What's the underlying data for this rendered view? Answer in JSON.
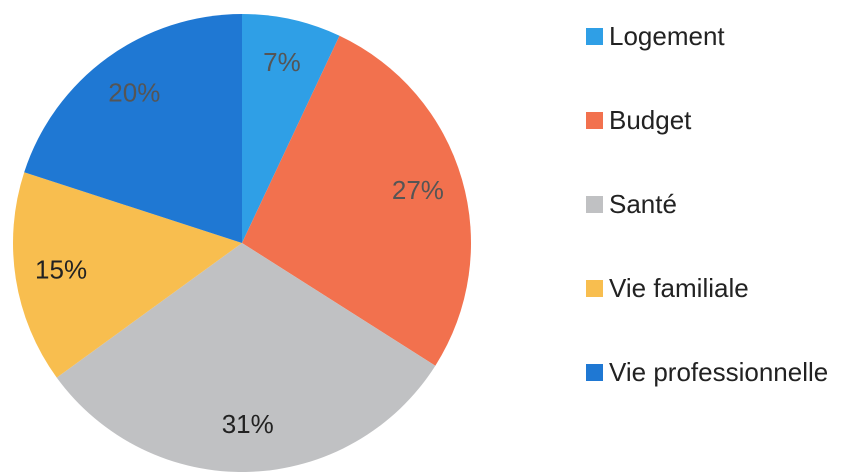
{
  "chart_data": {
    "type": "pie",
    "categories": [
      "Logement",
      "Budget",
      "Santé",
      "Vie familiale",
      "Vie professionnelle"
    ],
    "values": [
      7,
      27,
      31,
      15,
      20
    ],
    "value_labels": [
      "7%",
      "27%",
      "31%",
      "15%",
      "20%"
    ],
    "colors": [
      "#2f9fe6",
      "#f2714e",
      "#c0c1c3",
      "#f8be4f",
      "#1f78d3"
    ],
    "legend": "right"
  }
}
